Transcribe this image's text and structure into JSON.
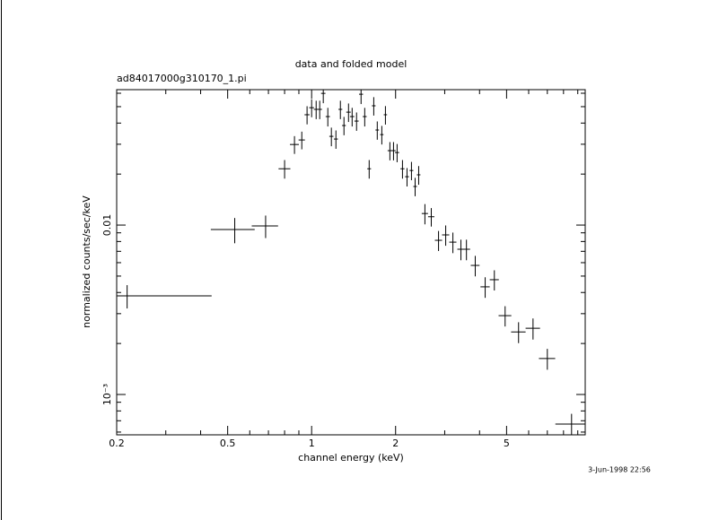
{
  "chart_data": {
    "type": "errorbar",
    "title": "data and folded model",
    "subtitle": "ad84017000g310170_1.pi",
    "xlabel": "channel energy (keV)",
    "ylabel": "normalized counts/sec/keV",
    "annotation": "3-Jun-1998 22:56",
    "xlog": true,
    "ylog": true,
    "xlim": [
      0.2,
      9.57
    ],
    "ylim": [
      0.000578,
      0.063
    ],
    "xticks": [
      0.2,
      0.5,
      1,
      2,
      5
    ],
    "xticks_minor": [
      0.3,
      0.4,
      0.6,
      0.7,
      0.8,
      0.9,
      3,
      4,
      6,
      7,
      8,
      9
    ],
    "yticks": [
      {
        "value": 0.001,
        "label": "10⁻³"
      },
      0.01
    ],
    "yticks_minor": [
      0.0006,
      0.0007,
      0.0008,
      0.0009,
      0.002,
      0.003,
      0.004,
      0.005,
      0.006,
      0.007,
      0.008,
      0.009,
      0.02,
      0.03,
      0.04,
      0.05,
      0.06
    ],
    "color": "#000000",
    "x": [
      0.218,
      0.53,
      0.684,
      0.8,
      0.868,
      0.922,
      0.963,
      1.0,
      1.038,
      1.069,
      1.101,
      1.143,
      1.177,
      1.222,
      1.268,
      1.306,
      1.356,
      1.397,
      1.449,
      1.504,
      1.55,
      1.608,
      1.67,
      1.719,
      1.785,
      1.839,
      1.908,
      1.966,
      2.025,
      2.117,
      2.198,
      2.28,
      2.35,
      2.42,
      2.548,
      2.685,
      2.851,
      3.025,
      3.21,
      3.43,
      3.59,
      3.86,
      4.19,
      4.52,
      4.94,
      5.52,
      6.22,
      7.0,
      8.55
    ],
    "xerr": [
      0.22,
      0.095,
      0.074,
      0.039,
      0.032,
      0.024,
      0.02,
      0.02,
      0.02,
      0.02,
      0.02,
      0.02,
      0.02,
      0.02,
      0.02,
      0.02,
      0.025,
      0.025,
      0.025,
      0.025,
      0.025,
      0.025,
      0.025,
      0.025,
      0.025,
      0.025,
      0.035,
      0.035,
      0.035,
      0.035,
      0.035,
      0.035,
      0.035,
      0.035,
      0.066,
      0.07,
      0.085,
      0.09,
      0.095,
      0.1,
      0.11,
      0.14,
      0.16,
      0.17,
      0.26,
      0.33,
      0.37,
      0.47,
      1.07
    ],
    "y": [
      0.00382,
      0.00941,
      0.00988,
      0.0215,
      0.0299,
      0.0318,
      0.0448,
      0.0493,
      0.0482,
      0.0482,
      0.0599,
      0.0437,
      0.0334,
      0.0322,
      0.0482,
      0.0387,
      0.0464,
      0.0437,
      0.0411,
      0.0592,
      0.0437,
      0.0215,
      0.0506,
      0.0364,
      0.0342,
      0.0448,
      0.0275,
      0.0275,
      0.0268,
      0.0215,
      0.0193,
      0.021,
      0.0169,
      0.0198,
      0.0117,
      0.0112,
      0.00813,
      0.00875,
      0.00793,
      0.0072,
      0.0072,
      0.00578,
      0.00432,
      0.00476,
      0.00292,
      0.00234,
      0.00246,
      0.00163,
      0.000669
    ],
    "yerr": [
      0.0006,
      0.0016,
      0.0015,
      0.0027,
      0.0036,
      0.0038,
      0.0055,
      0.006,
      0.006,
      0.006,
      0.0075,
      0.0055,
      0.0042,
      0.004,
      0.006,
      0.0048,
      0.0058,
      0.0055,
      0.0051,
      0.0074,
      0.0055,
      0.0027,
      0.0063,
      0.0045,
      0.0043,
      0.0056,
      0.0034,
      0.0034,
      0.0033,
      0.0027,
      0.0024,
      0.0026,
      0.0021,
      0.0025,
      0.0016,
      0.0014,
      0.0011,
      0.0012,
      0.0011,
      0.001,
      0.001,
      0.0008,
      0.0006,
      0.00065,
      0.0004,
      0.00033,
      0.00035,
      0.00023,
      0.0001
    ]
  }
}
